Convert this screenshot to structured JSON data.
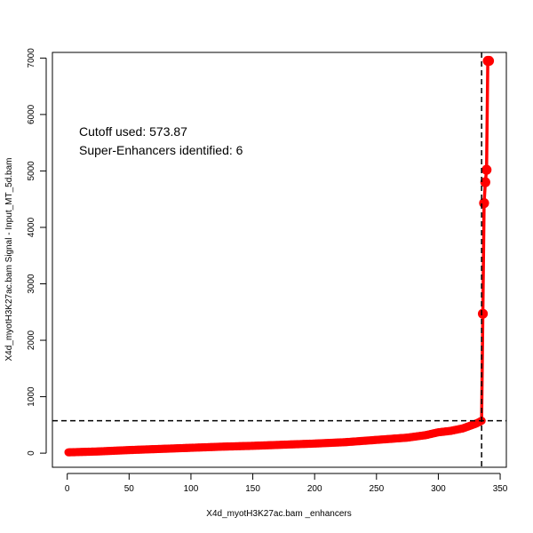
{
  "chart_data": {
    "type": "line",
    "xlabel": "X4d_myotH3K27ac.bam _enhancers",
    "ylabel": "X4d_myotH3K27ac.bam  Signal - Input_MT_5d.bam",
    "xlim": [
      -12,
      355
    ],
    "ylim": [
      -250,
      7100
    ],
    "x_ticks": [
      0,
      50,
      100,
      150,
      200,
      250,
      300,
      350
    ],
    "y_ticks": [
      0,
      1000,
      2000,
      3000,
      4000,
      5000,
      6000,
      7000
    ],
    "annotations": [
      "Cutoff used:  573.87",
      "Super-Enhancers identified:  6"
    ],
    "cutoff_y": 573.87,
    "cutoff_x": 335,
    "n_points": 341,
    "curve_x": [
      1,
      25,
      50,
      75,
      100,
      125,
      150,
      175,
      200,
      225,
      250,
      275,
      290,
      300,
      310,
      320,
      325,
      330,
      333,
      335
    ],
    "curve_y": [
      15,
      30,
      55,
      75,
      95,
      115,
      130,
      150,
      170,
      195,
      235,
      275,
      320,
      370,
      395,
      440,
      480,
      520,
      550,
      574
    ],
    "super_enhancers": {
      "x": [
        336,
        337,
        338,
        339,
        340,
        341
      ],
      "y": [
        2470,
        4430,
        4800,
        5020,
        6950,
        6950
      ]
    },
    "colors": {
      "series": "#ff0000",
      "cutoff": "#000000"
    }
  }
}
